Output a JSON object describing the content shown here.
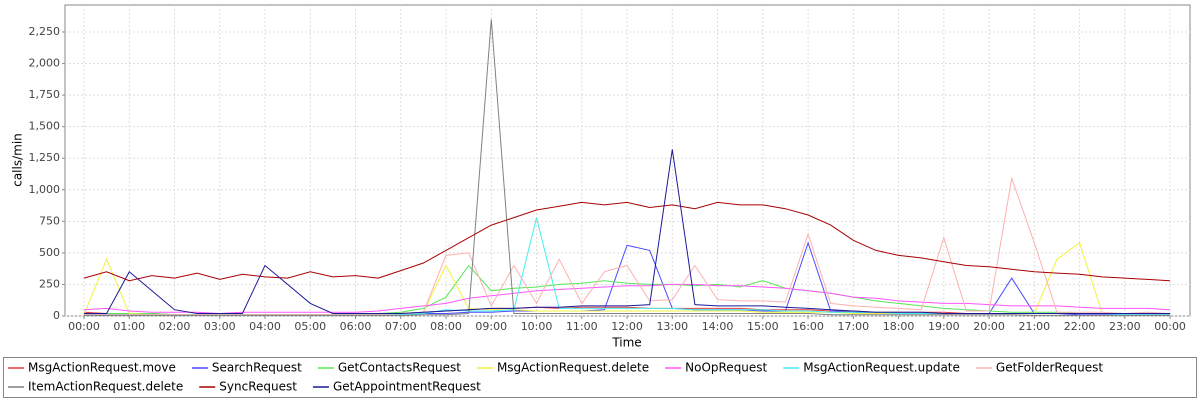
{
  "chart_data": {
    "type": "line",
    "x_label": "Time",
    "y_label": "calls/min",
    "x": [
      0,
      0.5,
      1,
      1.5,
      2,
      2.5,
      3,
      3.5,
      4,
      4.5,
      5,
      5.5,
      6,
      6.5,
      7,
      7.5,
      8,
      8.5,
      9,
      9.5,
      10,
      10.5,
      11,
      11.5,
      12,
      12.5,
      13,
      13.5,
      14,
      14.5,
      15,
      15.5,
      16,
      16.5,
      17,
      17.5,
      18,
      18.5,
      19,
      19.5,
      20,
      20.5,
      21,
      21.5,
      22,
      22.5,
      23,
      23.5,
      24
    ],
    "xlim": [
      -0.42,
      24.44
    ],
    "xticks": [
      {
        "value": 0,
        "label": "00:00"
      },
      {
        "value": 1,
        "label": "01:00"
      },
      {
        "value": 2,
        "label": "02:00"
      },
      {
        "value": 3,
        "label": "03:00"
      },
      {
        "value": 4,
        "label": "04:00"
      },
      {
        "value": 5,
        "label": "05:00"
      },
      {
        "value": 6,
        "label": "06:00"
      },
      {
        "value": 7,
        "label": "07:00"
      },
      {
        "value": 8,
        "label": "08:00"
      },
      {
        "value": 9,
        "label": "09:00"
      },
      {
        "value": 10,
        "label": "10:00"
      },
      {
        "value": 11,
        "label": "11:00"
      },
      {
        "value": 12,
        "label": "12:00"
      },
      {
        "value": 13,
        "label": "13:00"
      },
      {
        "value": 14,
        "label": "14:00"
      },
      {
        "value": 15,
        "label": "15:00"
      },
      {
        "value": 16,
        "label": "16:00"
      },
      {
        "value": 17,
        "label": "17:00"
      },
      {
        "value": 18,
        "label": "18:00"
      },
      {
        "value": 19,
        "label": "19:00"
      },
      {
        "value": 20,
        "label": "20:00"
      },
      {
        "value": 21,
        "label": "21:00"
      },
      {
        "value": 22,
        "label": "22:00"
      },
      {
        "value": 23,
        "label": "23:00"
      },
      {
        "value": 24,
        "label": "00:00"
      }
    ],
    "ylim": [
      0,
      2464
    ],
    "yticks": [
      0,
      250,
      500,
      750,
      {
        "value": 1000,
        "label": "1,000"
      },
      {
        "value": 1250,
        "label": "1,250"
      },
      {
        "value": 1500,
        "label": "1,500"
      },
      {
        "value": 1750,
        "label": "1,750"
      },
      {
        "value": 2000,
        "label": "2,000"
      },
      {
        "value": 2250,
        "label": "2,250"
      }
    ],
    "grid": true,
    "series": [
      {
        "name": "MsgActionRequest.move",
        "color": "#e83c3c",
        "values": [
          30,
          20,
          20,
          20,
          10,
          10,
          10,
          10,
          10,
          10,
          10,
          10,
          10,
          10,
          20,
          30,
          40,
          50,
          60,
          60,
          70,
          60,
          70,
          70,
          70,
          60,
          60,
          60,
          60,
          60,
          50,
          50,
          50,
          40,
          40,
          30,
          30,
          30,
          30,
          20,
          20,
          20,
          20,
          20,
          20,
          20,
          20,
          20,
          20
        ]
      },
      {
        "name": "SearchRequest",
        "color": "#4a4aff",
        "values": [
          10,
          10,
          10,
          10,
          10,
          10,
          10,
          10,
          10,
          10,
          10,
          10,
          10,
          10,
          10,
          20,
          20,
          30,
          30,
          40,
          40,
          40,
          40,
          50,
          560,
          520,
          60,
          50,
          50,
          50,
          40,
          40,
          580,
          40,
          30,
          20,
          20,
          20,
          20,
          20,
          20,
          300,
          20,
          20,
          10,
          10,
          10,
          10,
          10
        ]
      },
      {
        "name": "GetContactsRequest",
        "color": "#55e855",
        "values": [
          20,
          20,
          20,
          20,
          10,
          10,
          10,
          10,
          10,
          10,
          10,
          10,
          10,
          20,
          30,
          60,
          150,
          400,
          200,
          220,
          230,
          250,
          260,
          280,
          260,
          250,
          250,
          240,
          250,
          230,
          280,
          220,
          200,
          180,
          150,
          120,
          100,
          80,
          60,
          50,
          40,
          30,
          30,
          30,
          20,
          20,
          20,
          20,
          20
        ]
      },
      {
        "name": "MsgActionRequest.delete",
        "color": "#f2f23c",
        "values": [
          10,
          450,
          20,
          10,
          10,
          10,
          10,
          10,
          10,
          10,
          10,
          10,
          10,
          10,
          20,
          30,
          400,
          60,
          50,
          50,
          40,
          40,
          40,
          40,
          40,
          40,
          40,
          40,
          40,
          40,
          30,
          30,
          30,
          30,
          20,
          20,
          20,
          20,
          20,
          20,
          20,
          20,
          20,
          450,
          580,
          20,
          20,
          20,
          20
        ]
      },
      {
        "name": "NoOpRequest",
        "color": "#ff55ff",
        "values": [
          50,
          60,
          40,
          30,
          30,
          30,
          20,
          30,
          30,
          30,
          30,
          30,
          30,
          40,
          60,
          80,
          100,
          140,
          160,
          180,
          200,
          210,
          220,
          230,
          240,
          240,
          250,
          250,
          240,
          240,
          230,
          220,
          200,
          180,
          150,
          140,
          120,
          110,
          100,
          100,
          90,
          80,
          80,
          80,
          70,
          60,
          60,
          60,
          50
        ]
      },
      {
        "name": "MsgActionRequest.update",
        "color": "#44eeee",
        "values": [
          10,
          10,
          10,
          10,
          10,
          10,
          10,
          10,
          10,
          10,
          10,
          10,
          10,
          10,
          10,
          20,
          50,
          40,
          40,
          50,
          780,
          60,
          60,
          60,
          60,
          60,
          60,
          50,
          50,
          50,
          50,
          40,
          40,
          30,
          30,
          30,
          20,
          20,
          20,
          20,
          20,
          20,
          20,
          20,
          20,
          20,
          10,
          10,
          10
        ]
      },
      {
        "name": "GetFolderRequest",
        "color": "#ffb0b0",
        "values": [
          10,
          10,
          10,
          10,
          10,
          10,
          10,
          10,
          10,
          10,
          10,
          10,
          10,
          10,
          20,
          30,
          480,
          500,
          80,
          400,
          100,
          450,
          100,
          350,
          400,
          120,
          130,
          400,
          130,
          120,
          120,
          110,
          650,
          100,
          80,
          70,
          60,
          50,
          620,
          40,
          40,
          1090,
          580,
          30,
          30,
          30,
          20,
          30,
          20
        ]
      },
      {
        "name": "ItemActionRequest.delete",
        "color": "#808080",
        "values": [
          5,
          5,
          5,
          5,
          5,
          5,
          5,
          5,
          5,
          5,
          5,
          5,
          5,
          5,
          5,
          10,
          10,
          20,
          2350,
          20,
          20,
          20,
          20,
          20,
          20,
          20,
          20,
          20,
          20,
          20,
          20,
          20,
          20,
          10,
          10,
          10,
          10,
          10,
          10,
          10,
          10,
          10,
          5,
          5,
          5,
          5,
          5,
          5,
          5
        ]
      },
      {
        "name": "SyncRequest",
        "color": "#aa0000",
        "values": [
          300,
          350,
          280,
          320,
          300,
          340,
          290,
          330,
          310,
          300,
          350,
          310,
          320,
          300,
          360,
          420,
          520,
          620,
          720,
          780,
          840,
          870,
          900,
          880,
          900,
          860,
          880,
          850,
          900,
          880,
          880,
          850,
          800,
          720,
          600,
          520,
          480,
          460,
          430,
          400,
          390,
          370,
          350,
          340,
          330,
          310,
          300,
          290,
          280
        ]
      },
      {
        "name": "GetAppointmentRequest",
        "color": "#1a1a99",
        "values": [
          20,
          20,
          350,
          200,
          50,
          20,
          20,
          20,
          400,
          250,
          100,
          20,
          20,
          20,
          20,
          30,
          40,
          50,
          60,
          60,
          70,
          70,
          80,
          80,
          80,
          90,
          1320,
          90,
          80,
          80,
          80,
          70,
          60,
          50,
          40,
          30,
          30,
          30,
          20,
          20,
          20,
          20,
          20,
          20,
          20,
          20,
          20,
          20,
          20
        ]
      }
    ]
  }
}
